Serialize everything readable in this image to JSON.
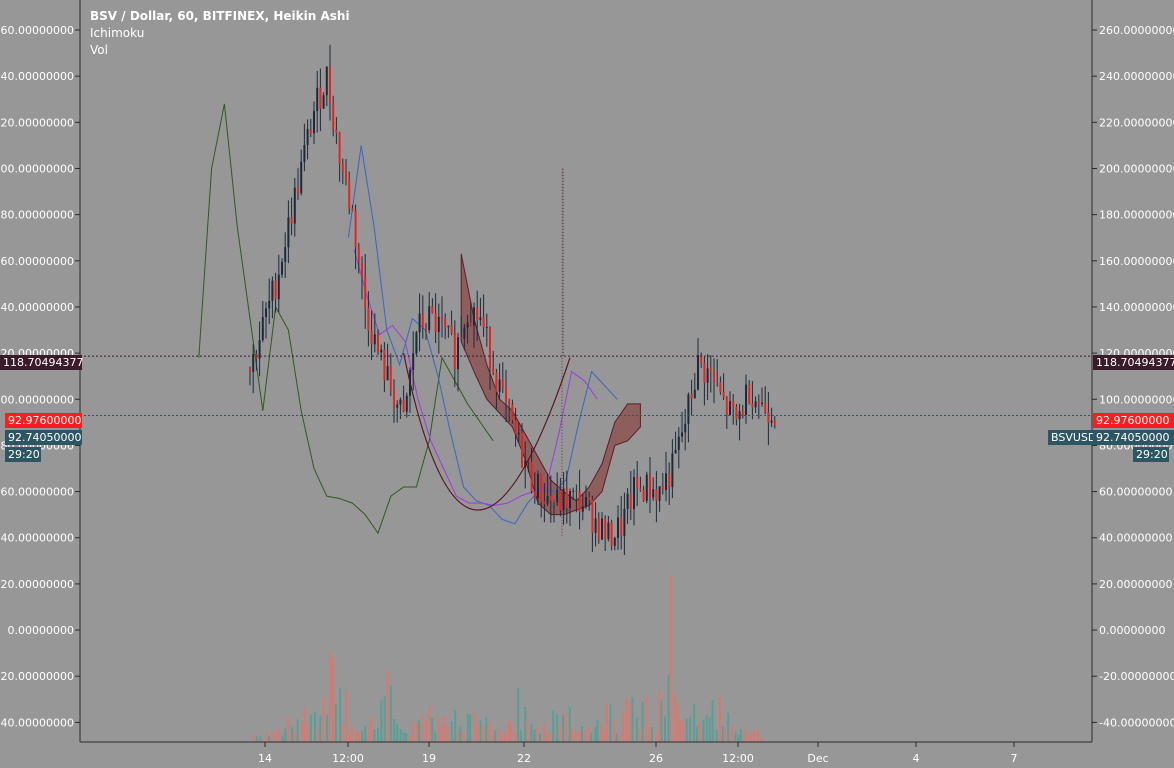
{
  "header": {
    "title": "BSV / Dollar, 60, BITFINEX, Heikin Ashi",
    "indicators": [
      "Ichimoku",
      "Vol"
    ]
  },
  "colors": {
    "background": "#979797",
    "up_candle": "#1c2b3b",
    "down_candle": "#e8231d",
    "conversion_line": "#3a64c8",
    "base_line": "#9a3be0",
    "lagging_span": "#2f5a1c",
    "cloud_bearish": "#8e5c5a",
    "cloud_edge": "#5a1620",
    "volume_up": "#5a9e98",
    "volume_down": "#d9786e",
    "label_dark": "#3a1b2a",
    "label_red": "#ff1c1c",
    "label_teal": "#2c5663"
  },
  "chart_data": {
    "type": "candlestick",
    "title": "BSV / Dollar, 60, BITFINEX, Heikin Ashi",
    "ylim": [
      -48.5,
      273
    ],
    "y_ticks": [
      -40,
      -20,
      0,
      20,
      40,
      60,
      80,
      100,
      120,
      140,
      160,
      180,
      200,
      220,
      240,
      260
    ],
    "y_tick_labels": [
      "-40.00000000",
      "-20.00000000",
      "0.00000000",
      "20.00000000",
      "40.00000000",
      "60.00000000",
      "80.00000000",
      "100.00000000",
      "120.00000000",
      "140.00000000",
      "160.00000000",
      "180.00000000",
      "200.00000000",
      "220.00000000",
      "240.00000000",
      "260.00000000"
    ],
    "x_ticks": [
      "14",
      "12:00",
      "19",
      "22",
      "26",
      "12:00",
      "Dec",
      "4",
      "7"
    ],
    "grid": false,
    "price_path": [
      [
        0,
        113
      ],
      [
        4,
        150
      ],
      [
        8,
        200
      ],
      [
        10,
        225
      ],
      [
        12,
        240
      ],
      [
        14,
        205
      ],
      [
        16,
        180
      ],
      [
        18,
        140
      ],
      [
        20,
        120
      ],
      [
        22,
        105
      ],
      [
        24,
        90
      ],
      [
        26,
        130
      ],
      [
        28,
        135
      ],
      [
        30,
        130
      ],
      [
        32,
        120
      ],
      [
        34,
        140
      ],
      [
        36,
        135
      ],
      [
        38,
        115
      ],
      [
        40,
        95
      ],
      [
        42,
        80
      ],
      [
        44,
        65
      ],
      [
        46,
        58
      ],
      [
        48,
        55
      ],
      [
        50,
        57
      ],
      [
        52,
        55
      ],
      [
        54,
        47
      ],
      [
        56,
        40
      ],
      [
        58,
        45
      ],
      [
        60,
        60
      ],
      [
        62,
        62
      ],
      [
        64,
        60
      ],
      [
        66,
        70
      ],
      [
        68,
        90
      ],
      [
        70,
        115
      ],
      [
        72,
        110
      ],
      [
        74,
        98
      ],
      [
        76,
        90
      ],
      [
        78,
        105
      ],
      [
        80,
        97
      ],
      [
        82,
        95
      ]
    ],
    "lagging_path": [
      [
        -8,
        118
      ],
      [
        -6,
        200
      ],
      [
        -4,
        228
      ],
      [
        -2,
        175
      ],
      [
        0,
        135
      ],
      [
        2,
        95
      ],
      [
        4,
        140
      ],
      [
        6,
        130
      ],
      [
        8,
        95
      ],
      [
        10,
        70
      ],
      [
        12,
        58
      ],
      [
        14,
        57
      ],
      [
        16,
        55
      ],
      [
        18,
        50
      ],
      [
        20,
        42
      ],
      [
        22,
        58
      ],
      [
        24,
        62
      ],
      [
        26,
        62
      ],
      [
        28,
        82
      ],
      [
        30,
        118
      ],
      [
        32,
        108
      ],
      [
        34,
        98
      ],
      [
        36,
        90
      ],
      [
        38,
        82
      ]
    ],
    "conversion_path": [
      [
        6,
        170
      ],
      [
        8,
        210
      ],
      [
        10,
        175
      ],
      [
        12,
        130
      ],
      [
        14,
        115
      ],
      [
        16,
        135
      ],
      [
        18,
        130
      ],
      [
        20,
        110
      ],
      [
        22,
        85
      ],
      [
        24,
        62
      ],
      [
        26,
        56
      ],
      [
        28,
        54
      ],
      [
        30,
        48
      ],
      [
        32,
        46
      ],
      [
        34,
        55
      ],
      [
        36,
        61
      ],
      [
        38,
        60
      ],
      [
        40,
        65
      ],
      [
        42,
        90
      ],
      [
        44,
        112
      ],
      [
        46,
        106
      ],
      [
        48,
        100
      ]
    ],
    "base_line_path": [
      [
        10,
        165
      ],
      [
        12,
        145
      ],
      [
        14,
        128
      ],
      [
        16,
        132
      ],
      [
        18,
        125
      ],
      [
        20,
        100
      ],
      [
        22,
        82
      ],
      [
        24,
        70
      ],
      [
        26,
        58
      ],
      [
        28,
        55
      ],
      [
        30,
        55
      ],
      [
        32,
        54
      ],
      [
        34,
        55
      ],
      [
        36,
        58
      ],
      [
        38,
        60
      ],
      [
        40,
        62
      ],
      [
        42,
        85
      ],
      [
        44,
        112
      ],
      [
        46,
        108
      ],
      [
        48,
        100
      ]
    ],
    "cloud_top": [
      [
        18,
        163
      ],
      [
        20,
        135
      ],
      [
        22,
        115
      ],
      [
        24,
        100
      ],
      [
        26,
        95
      ],
      [
        28,
        85
      ],
      [
        30,
        75
      ],
      [
        32,
        65
      ],
      [
        34,
        60
      ],
      [
        36,
        56
      ],
      [
        38,
        62
      ],
      [
        40,
        72
      ],
      [
        42,
        90
      ],
      [
        44,
        98
      ],
      [
        46,
        98
      ]
    ],
    "cloud_bottom": [
      [
        18,
        125
      ],
      [
        20,
        112
      ],
      [
        22,
        100
      ],
      [
        24,
        94
      ],
      [
        26,
        88
      ],
      [
        28,
        74
      ],
      [
        30,
        55
      ],
      [
        32,
        50
      ],
      [
        34,
        50
      ],
      [
        36,
        52
      ],
      [
        38,
        54
      ],
      [
        40,
        60
      ],
      [
        42,
        80
      ],
      [
        44,
        82
      ],
      [
        46,
        88
      ]
    ],
    "rounding_curve": [
      [
        24,
        120
      ],
      [
        34,
        40
      ],
      [
        50,
        118
      ]
    ],
    "volume_note": "relative volume bars along bottom; tallest near 14th and 26th",
    "volume_bars": [
      3,
      6,
      4,
      8,
      12,
      10,
      14,
      30,
      18,
      9,
      6,
      8,
      22,
      7,
      5,
      9,
      16,
      11,
      10,
      6,
      12,
      8,
      7,
      5,
      9,
      13,
      10,
      6,
      11,
      14,
      7,
      5,
      8,
      12,
      9,
      20,
      15,
      10,
      16,
      25,
      18,
      12,
      9,
      14,
      10,
      8,
      6,
      4
    ],
    "volume_colors_up": [
      true,
      false,
      true,
      true,
      false,
      true,
      false,
      true,
      true,
      false,
      true,
      false,
      true,
      true,
      false,
      true,
      true,
      false,
      false,
      true,
      false,
      true,
      false,
      true,
      false,
      true,
      false,
      true,
      true,
      false,
      true,
      false,
      true,
      true,
      false,
      true,
      false,
      true,
      true,
      false,
      true,
      false,
      false,
      true,
      false,
      true,
      false,
      true
    ],
    "series": [
      {
        "name": "Vol"
      }
    ]
  },
  "price_labels": {
    "level_high": "118.70494377",
    "last_red": "92.97600000",
    "last_teal": "92.74050000",
    "countdown": "29:20",
    "symbol_tag": "BSVUSD"
  }
}
